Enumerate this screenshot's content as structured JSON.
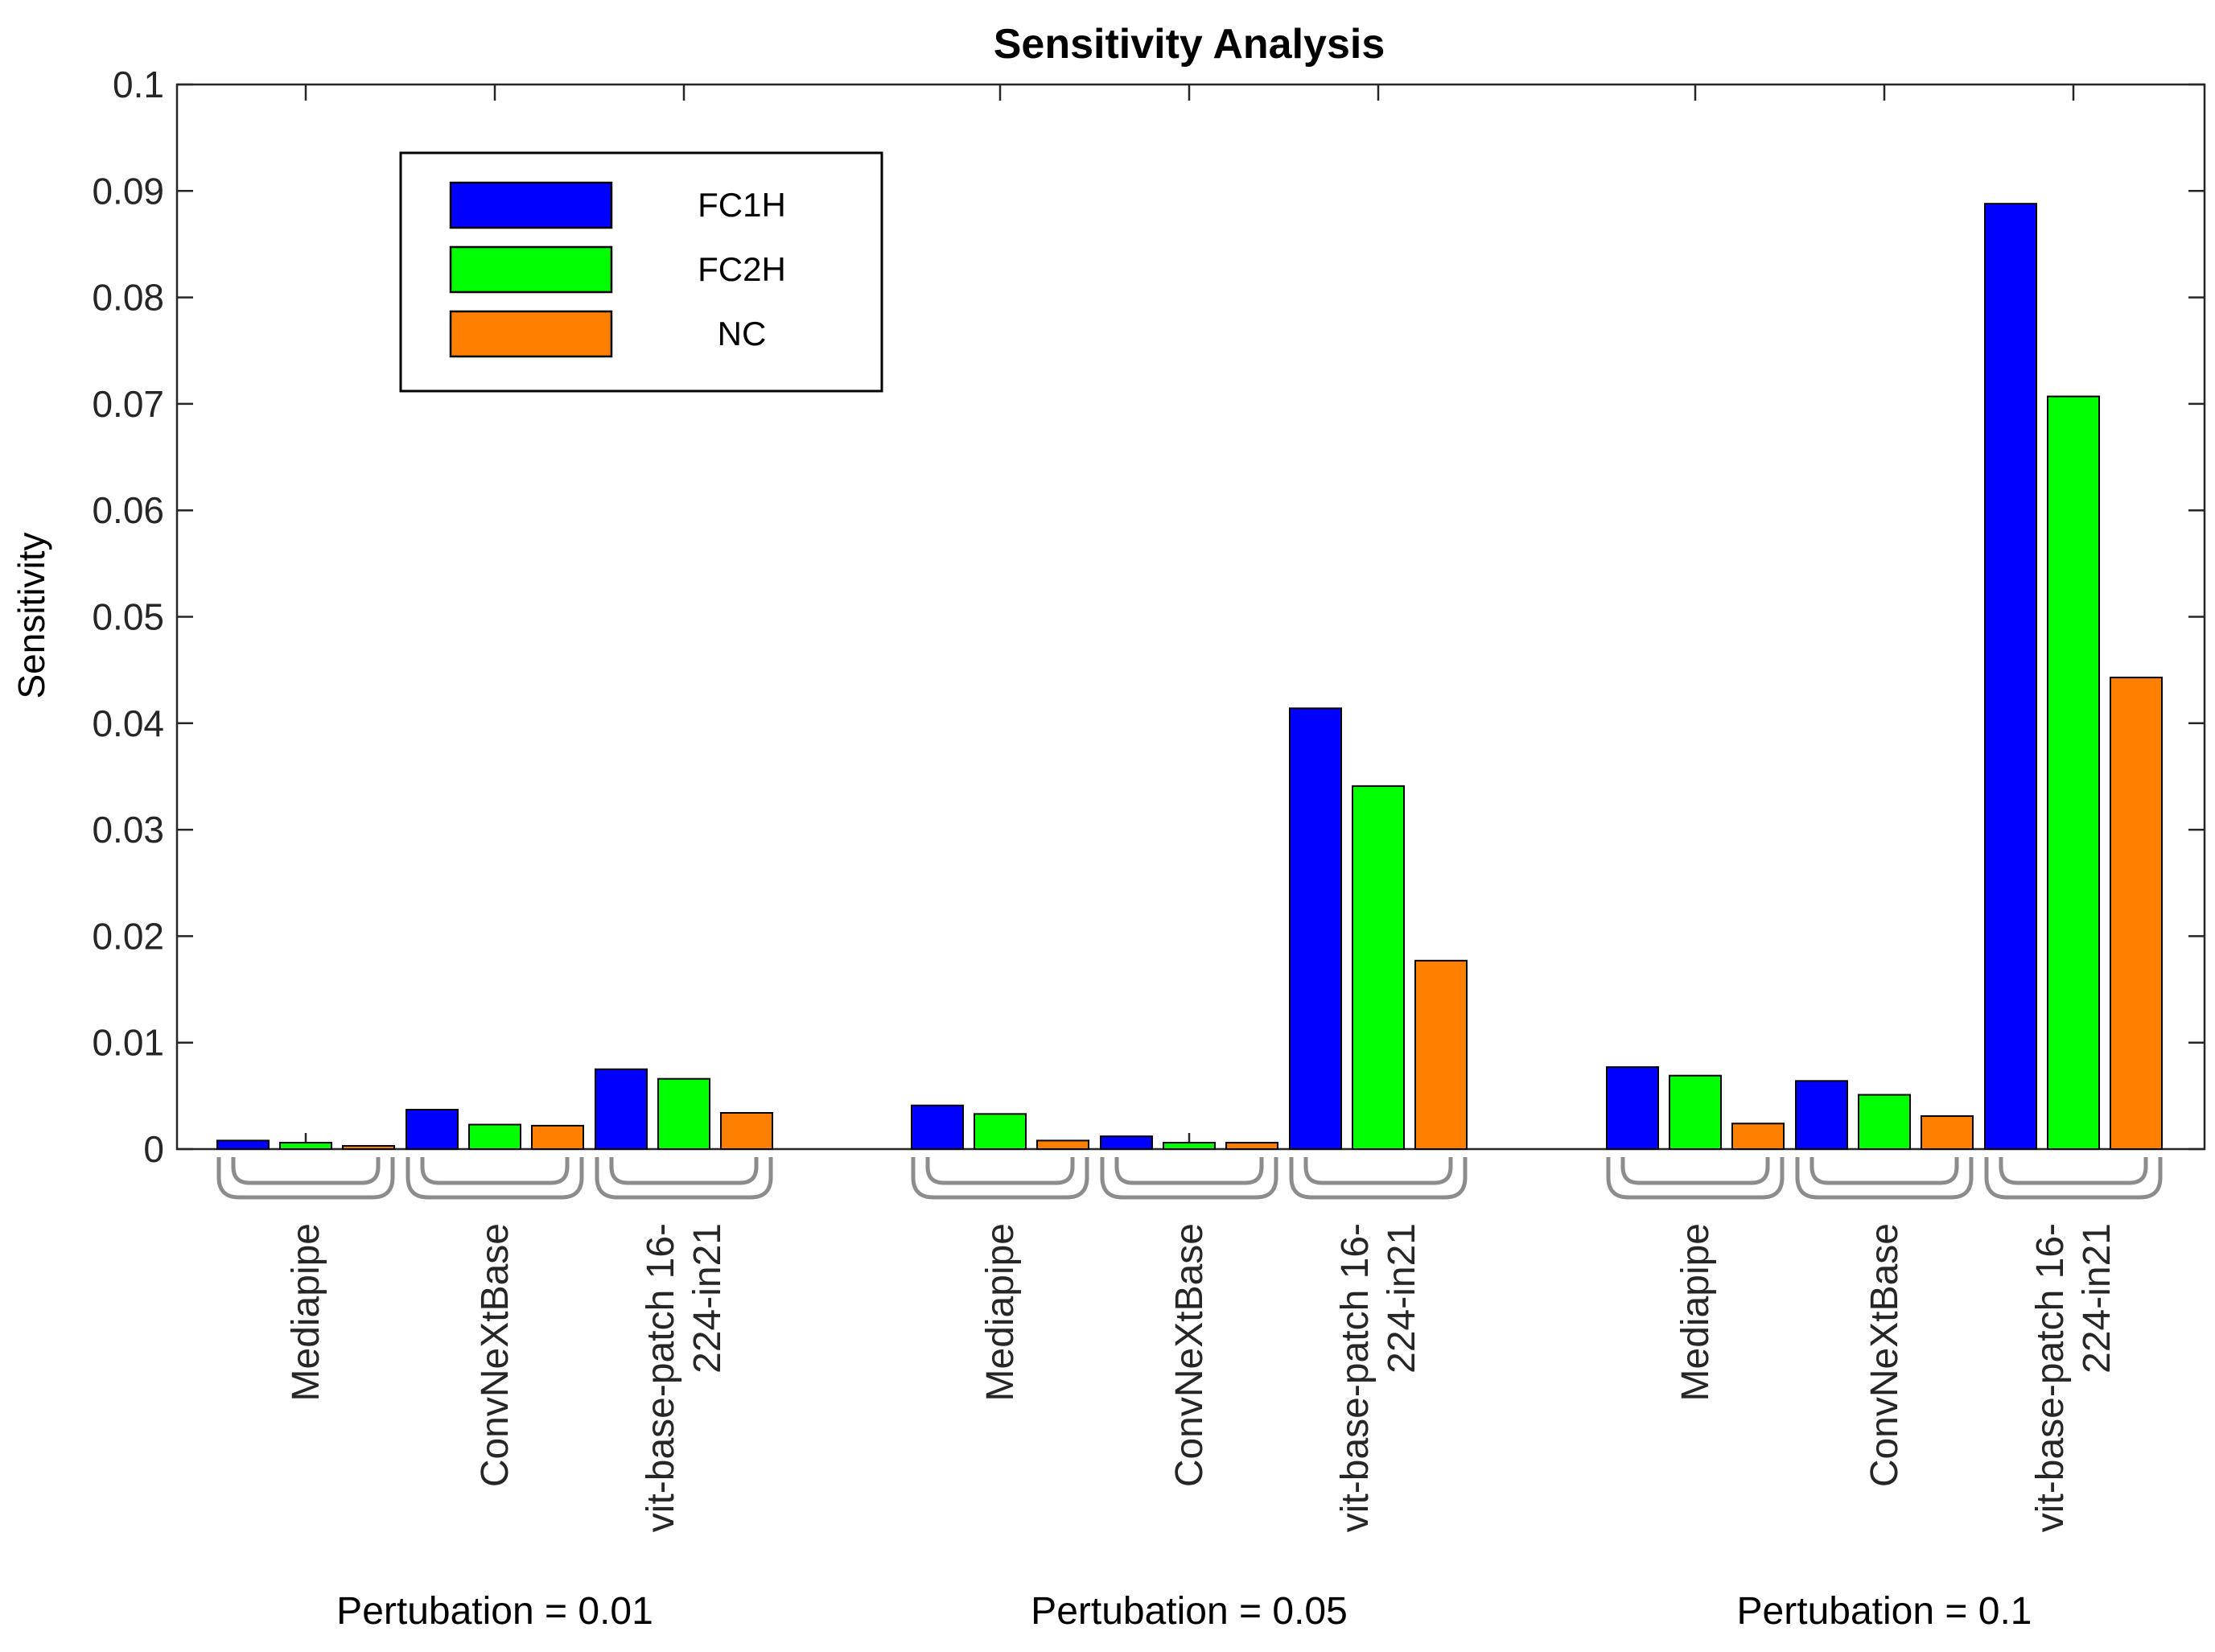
{
  "chart_data": {
    "type": "bar",
    "title": "Sensitivity Analysis",
    "xlabel": "",
    "ylabel": "Sensitivity",
    "ylim": [
      0,
      0.1
    ],
    "yticks": [
      "0",
      "0.01",
      "0.02",
      "0.03",
      "0.04",
      "0.05",
      "0.06",
      "0.07",
      "0.08",
      "0.09",
      "0.1"
    ],
    "legend_position": "top-left",
    "groups": [
      {
        "label": "Pertubation = 0.01",
        "categories": [
          {
            "label_lines": [
              "Mediapipe"
            ],
            "values": [
              0.0008,
              0.0006,
              0.0003
            ]
          },
          {
            "label_lines": [
              "ConvNeXtBase"
            ],
            "values": [
              0.0037,
              0.0023,
              0.0022
            ]
          },
          {
            "label_lines": [
              "vit-base-patch 16-",
              "224-in21"
            ],
            "values": [
              0.0075,
              0.0066,
              0.0034
            ]
          }
        ]
      },
      {
        "label": "Pertubation = 0.05",
        "categories": [
          {
            "label_lines": [
              "Mediapipe"
            ],
            "values": [
              0.0041,
              0.0033,
              0.0008
            ]
          },
          {
            "label_lines": [
              "ConvNeXtBase"
            ],
            "values": [
              0.0012,
              0.0006,
              0.0006
            ]
          },
          {
            "label_lines": [
              "vit-base-patch 16-",
              "224-in21"
            ],
            "values": [
              0.0414,
              0.0341,
              0.0177
            ]
          }
        ]
      },
      {
        "label": "Pertubation = 0.1",
        "categories": [
          {
            "label_lines": [
              "Mediapipe"
            ],
            "values": [
              0.0077,
              0.0069,
              0.0024
            ]
          },
          {
            "label_lines": [
              "ConvNeXtBase"
            ],
            "values": [
              0.0064,
              0.0051,
              0.0031
            ]
          },
          {
            "label_lines": [
              "vit-base-patch 16-",
              "224-in21"
            ],
            "values": [
              0.0888,
              0.0707,
              0.0443
            ]
          }
        ]
      }
    ],
    "series": [
      {
        "name": "FC1H",
        "color": "#0000ff"
      },
      {
        "name": "FC2H",
        "color": "#00ff00"
      },
      {
        "name": "NC",
        "color": "#ff8000"
      }
    ]
  }
}
